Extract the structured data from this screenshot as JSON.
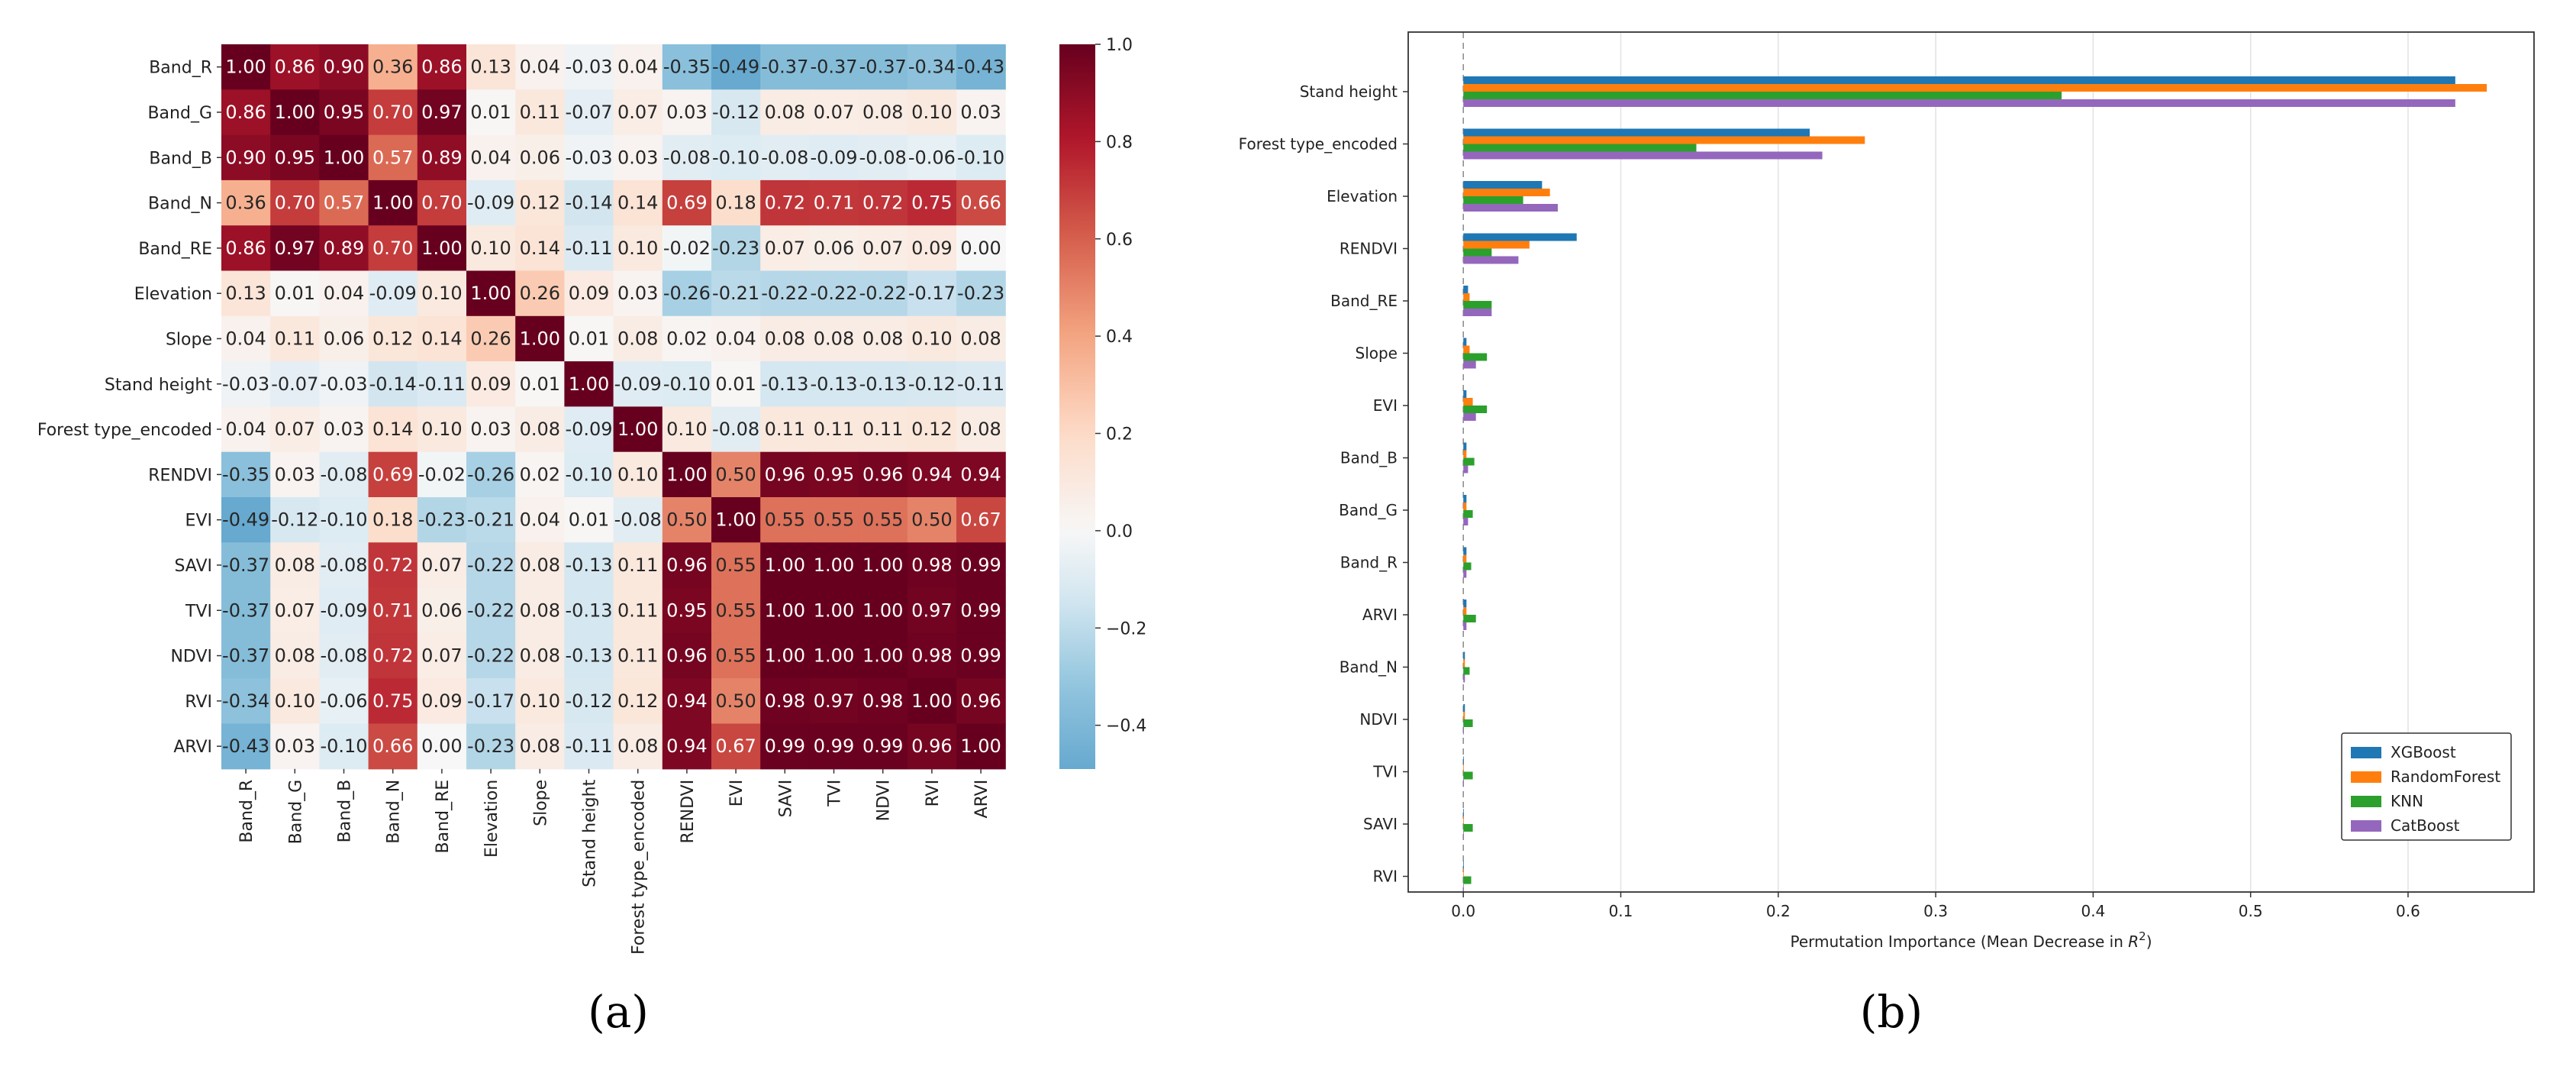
{
  "chart_data": [
    {
      "type": "heatmap",
      "panel_label": "(a)",
      "labels": [
        "Band_R",
        "Band_G",
        "Band_B",
        "Band_N",
        "Band_RE",
        "Elevation",
        "Slope",
        "Stand height",
        "Forest type_encoded",
        "RENDVI",
        "EVI",
        "SAVI",
        "TVI",
        "NDVI",
        "RVI",
        "ARVI"
      ],
      "values": [
        [
          1.0,
          0.86,
          0.9,
          0.36,
          0.86,
          0.13,
          0.04,
          -0.03,
          0.04,
          -0.35,
          -0.49,
          -0.37,
          -0.37,
          -0.37,
          -0.34,
          -0.43
        ],
        [
          0.86,
          1.0,
          0.95,
          0.7,
          0.97,
          0.01,
          0.11,
          -0.07,
          0.07,
          0.03,
          -0.12,
          0.08,
          0.07,
          0.08,
          0.1,
          0.03
        ],
        [
          0.9,
          0.95,
          1.0,
          0.57,
          0.89,
          0.04,
          0.06,
          -0.03,
          0.03,
          -0.08,
          -0.1,
          -0.08,
          -0.09,
          -0.08,
          -0.06,
          -0.1
        ],
        [
          0.36,
          0.7,
          0.57,
          1.0,
          0.7,
          -0.09,
          0.12,
          -0.14,
          0.14,
          0.69,
          0.18,
          0.72,
          0.71,
          0.72,
          0.75,
          0.66
        ],
        [
          0.86,
          0.97,
          0.89,
          0.7,
          1.0,
          0.1,
          0.14,
          -0.11,
          0.1,
          -0.02,
          -0.23,
          0.07,
          0.06,
          0.07,
          0.09,
          0.0
        ],
        [
          0.13,
          0.01,
          0.04,
          -0.09,
          0.1,
          1.0,
          0.26,
          0.09,
          0.03,
          -0.26,
          -0.21,
          -0.22,
          -0.22,
          -0.22,
          -0.17,
          -0.23
        ],
        [
          0.04,
          0.11,
          0.06,
          0.12,
          0.14,
          0.26,
          1.0,
          0.01,
          0.08,
          0.02,
          0.04,
          0.08,
          0.08,
          0.08,
          0.1,
          0.08
        ],
        [
          -0.03,
          -0.07,
          -0.03,
          -0.14,
          -0.11,
          0.09,
          0.01,
          1.0,
          -0.09,
          -0.1,
          0.01,
          -0.13,
          -0.13,
          -0.13,
          -0.12,
          -0.11
        ],
        [
          0.04,
          0.07,
          0.03,
          0.14,
          0.1,
          0.03,
          0.08,
          -0.09,
          1.0,
          0.1,
          -0.08,
          0.11,
          0.11,
          0.11,
          0.12,
          0.08
        ],
        [
          -0.35,
          0.03,
          -0.08,
          0.69,
          -0.02,
          -0.26,
          0.02,
          -0.1,
          0.1,
          1.0,
          0.5,
          0.96,
          0.95,
          0.96,
          0.94,
          0.94
        ],
        [
          -0.49,
          -0.12,
          -0.1,
          0.18,
          -0.23,
          -0.21,
          0.04,
          0.01,
          -0.08,
          0.5,
          1.0,
          0.55,
          0.55,
          0.55,
          0.5,
          0.67
        ],
        [
          -0.37,
          0.08,
          -0.08,
          0.72,
          0.07,
          -0.22,
          0.08,
          -0.13,
          0.11,
          0.96,
          0.55,
          1.0,
          1.0,
          1.0,
          0.98,
          0.99
        ],
        [
          -0.37,
          0.07,
          -0.09,
          0.71,
          0.06,
          -0.22,
          0.08,
          -0.13,
          0.11,
          0.95,
          0.55,
          1.0,
          1.0,
          1.0,
          0.97,
          0.99
        ],
        [
          -0.37,
          0.08,
          -0.08,
          0.72,
          0.07,
          -0.22,
          0.08,
          -0.13,
          0.11,
          0.96,
          0.55,
          1.0,
          1.0,
          1.0,
          0.98,
          0.99
        ],
        [
          -0.34,
          0.1,
          -0.06,
          0.75,
          0.09,
          -0.17,
          0.1,
          -0.12,
          0.12,
          0.94,
          0.5,
          0.98,
          0.97,
          0.98,
          1.0,
          0.96
        ],
        [
          -0.43,
          0.03,
          -0.1,
          0.66,
          0.0,
          -0.23,
          0.08,
          -0.11,
          0.08,
          0.94,
          0.67,
          0.99,
          0.99,
          0.99,
          0.96,
          1.0
        ]
      ],
      "colorbar": {
        "range": [
          -0.49,
          1.0
        ],
        "ticks": [
          "1.0",
          "0.8",
          "0.6",
          "0.4",
          "0.2",
          "0.0",
          "−0.2",
          "−0.4"
        ],
        "tick_values": [
          1.0,
          0.8,
          0.6,
          0.4,
          0.2,
          0.0,
          -0.2,
          -0.4
        ]
      },
      "colors": {
        "negative": "#67a9cf",
        "neutral": "#f7f7f7",
        "positive": "#67001f"
      }
    },
    {
      "type": "bar",
      "orientation": "horizontal",
      "panel_label": "(b)",
      "categories": [
        "Stand height",
        "Forest type_encoded",
        "Elevation",
        "RENDVI",
        "Band_RE",
        "Slope",
        "EVI",
        "Band_B",
        "Band_G",
        "Band_R",
        "ARVI",
        "Band_N",
        "NDVI",
        "TVI",
        "SAVI",
        "RVI"
      ],
      "series": [
        {
          "name": "XGBoost",
          "color": "#1f77b4",
          "values": [
            0.63,
            0.22,
            0.05,
            0.072,
            0.003,
            0.002,
            0.002,
            0.002,
            0.002,
            0.002,
            0.002,
            0.001,
            0.001,
            0.0,
            0.0,
            0.0
          ]
        },
        {
          "name": "RandomForest",
          "color": "#ff7f0e",
          "values": [
            0.65,
            0.255,
            0.055,
            0.042,
            0.004,
            0.004,
            0.006,
            0.002,
            0.002,
            0.002,
            0.002,
            0.001,
            0.001,
            0.0,
            0.0,
            0.0
          ]
        },
        {
          "name": "KNN",
          "color": "#2ca02c",
          "values": [
            0.38,
            0.148,
            0.038,
            0.018,
            0.018,
            0.015,
            0.015,
            0.007,
            0.006,
            0.005,
            0.008,
            0.004,
            0.006,
            0.006,
            0.006,
            0.005
          ]
        },
        {
          "name": "CatBoost",
          "color": "#9467bd",
          "values": [
            0.63,
            0.228,
            0.06,
            0.035,
            0.018,
            0.008,
            0.008,
            0.003,
            0.003,
            0.002,
            0.002,
            0.001,
            0.0,
            0.0,
            0.0,
            0.0
          ]
        }
      ],
      "xlabel": "Permutation Importance (Mean Decrease in R²)",
      "xlabel_main": "Permutation Importance (Mean Decrease in ",
      "xlabel_sym": "R",
      "xlabel_sup": "2",
      "xlabel_end": ")",
      "xlim": [
        -0.035,
        0.68
      ],
      "xticks": [
        0.0,
        0.1,
        0.2,
        0.3,
        0.4,
        0.5,
        0.6
      ],
      "xtick_labels": [
        "0.0",
        "0.1",
        "0.2",
        "0.3",
        "0.4",
        "0.5",
        "0.6"
      ],
      "grid": "vertical",
      "legend": "lower-right"
    }
  ]
}
